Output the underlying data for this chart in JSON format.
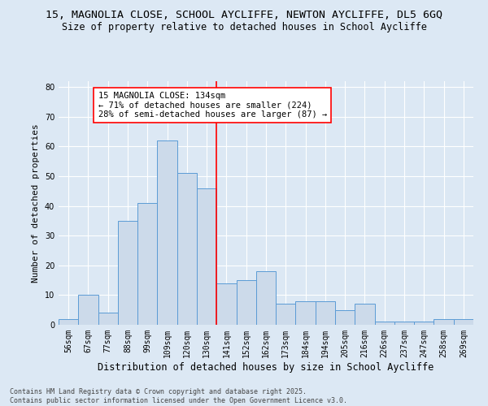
{
  "title_line1": "15, MAGNOLIA CLOSE, SCHOOL AYCLIFFE, NEWTON AYCLIFFE, DL5 6GQ",
  "title_line2": "Size of property relative to detached houses in School Aycliffe",
  "xlabel": "Distribution of detached houses by size in School Aycliffe",
  "ylabel": "Number of detached properties",
  "categories": [
    "56sqm",
    "67sqm",
    "77sqm",
    "88sqm",
    "99sqm",
    "109sqm",
    "120sqm",
    "130sqm",
    "141sqm",
    "152sqm",
    "162sqm",
    "173sqm",
    "184sqm",
    "194sqm",
    "205sqm",
    "216sqm",
    "226sqm",
    "237sqm",
    "247sqm",
    "258sqm",
    "269sqm"
  ],
  "values": [
    2,
    10,
    4,
    35,
    41,
    62,
    51,
    46,
    14,
    15,
    18,
    7,
    8,
    8,
    5,
    7,
    1,
    1,
    1,
    2,
    2
  ],
  "bar_color": "#ccdaea",
  "bar_edge_color": "#5b9bd5",
  "vline_x_index": 7,
  "vline_color": "red",
  "annotation_text": "15 MAGNOLIA CLOSE: 134sqm\n← 71% of detached houses are smaller (224)\n28% of semi-detached houses are larger (87) →",
  "annotation_box_color": "white",
  "annotation_box_edge_color": "red",
  "ylim": [
    0,
    82
  ],
  "yticks": [
    0,
    10,
    20,
    30,
    40,
    50,
    60,
    70,
    80
  ],
  "background_color": "#dce8f4",
  "footer_text": "Contains HM Land Registry data © Crown copyright and database right 2025.\nContains public sector information licensed under the Open Government Licence v3.0.",
  "title_fontsize": 9.5,
  "subtitle_fontsize": 8.5,
  "xlabel_fontsize": 8.5,
  "ylabel_fontsize": 8,
  "tick_fontsize": 7,
  "annotation_fontsize": 7.5,
  "footer_fontsize": 6
}
